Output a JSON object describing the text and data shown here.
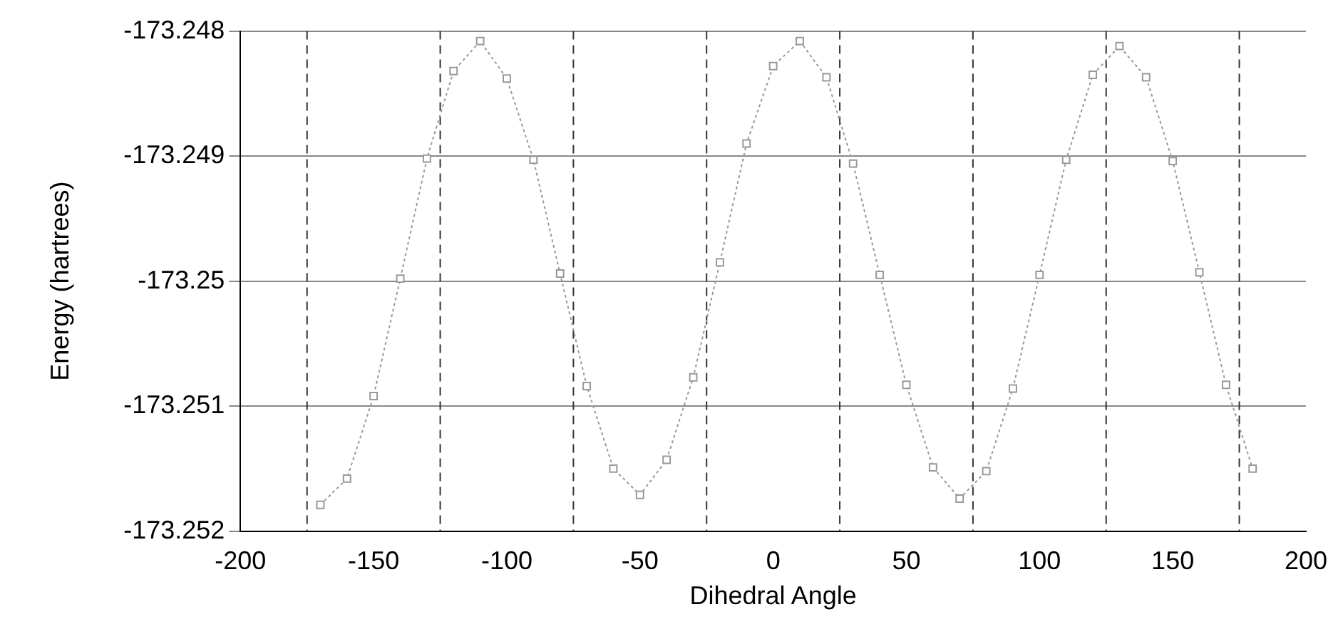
{
  "chart_data": {
    "type": "line",
    "xlabel": "Dihedral Angle",
    "ylabel": "Energy (hartrees)",
    "x": [
      -170,
      -160,
      -150,
      -140,
      -130,
      -120,
      -110,
      -100,
      -90,
      -80,
      -70,
      -60,
      -50,
      -40,
      -30,
      -20,
      -10,
      0,
      10,
      20,
      30,
      40,
      50,
      60,
      70,
      80,
      90,
      100,
      110,
      120,
      130,
      140,
      150,
      160,
      170,
      180
    ],
    "series": [
      {
        "color": "#999999",
        "values": [
          -173.25179,
          -173.25158,
          -173.25092,
          -173.24998,
          -173.24902,
          -173.24832,
          -173.24808,
          -173.24838,
          -173.24903,
          -173.24994,
          -173.25084,
          -173.2515,
          -173.25171,
          -173.25143,
          -173.25077,
          -173.24985,
          -173.2489,
          -173.24828,
          -173.24808,
          -173.24837,
          -173.24906,
          -173.24995,
          -173.25083,
          -173.25149,
          -173.25174,
          -173.25152,
          -173.25086,
          -173.24995,
          -173.24903,
          -173.24835,
          -173.24812,
          -173.24837,
          -173.24904,
          -173.24993,
          -173.25083,
          -173.2515
        ]
      }
    ],
    "xlim": [
      -200,
      200
    ],
    "xticks": [
      -200,
      -150,
      -100,
      -50,
      0,
      50,
      100,
      150,
      200
    ],
    "ylim": [
      -173.252,
      -173.248
    ],
    "yticks": [
      -173.252,
      -173.251,
      -173.25,
      -173.249,
      -173.248
    ],
    "ref_lines": [
      {
        "axis": "x",
        "value": -175
      },
      {
        "axis": "x",
        "value": -125
      },
      {
        "axis": "x",
        "value": -75
      },
      {
        "axis": "x",
        "value": -25
      },
      {
        "axis": "x",
        "value": 25
      },
      {
        "axis": "x",
        "value": 75
      },
      {
        "axis": "x",
        "value": 125
      },
      {
        "axis": "x",
        "value": 175
      }
    ],
    "grid": "y",
    "marker": "square",
    "line_style": "dotted"
  }
}
